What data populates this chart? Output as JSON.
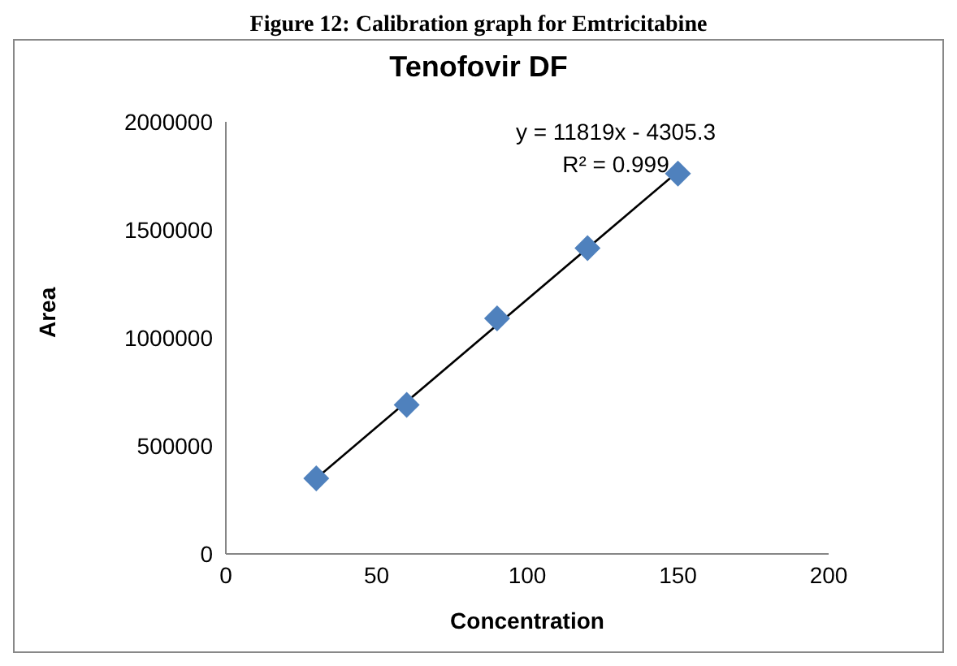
{
  "chart_data": {
    "type": "scatter",
    "title": "Tenofovir DF",
    "xlabel": "Concentration",
    "ylabel": "Area",
    "annotations": [
      "Figure 12: Calibration graph for Emtricitabine",
      "y = 11819x - 4305.3",
      "R² = 0.999"
    ],
    "x": [
      30,
      60,
      90,
      120,
      150
    ],
    "series": [
      {
        "color": "#4f81bd",
        "marker": "diamond",
        "values": [
          350000,
          690000,
          1090000,
          1415000,
          1760000
        ]
      },
      {
        "type": "line",
        "color": "#000000",
        "marker": "none",
        "x": [
          30,
          150
        ],
        "values": [
          350000,
          1770000
        ]
      }
    ],
    "xlim": [
      0,
      200
    ],
    "xticks": [
      0,
      50,
      100,
      150,
      200
    ],
    "ylim": [
      0,
      2000000
    ],
    "yticks": [
      0,
      500000,
      1000000,
      1500000,
      2000000
    ],
    "grid": false
  }
}
